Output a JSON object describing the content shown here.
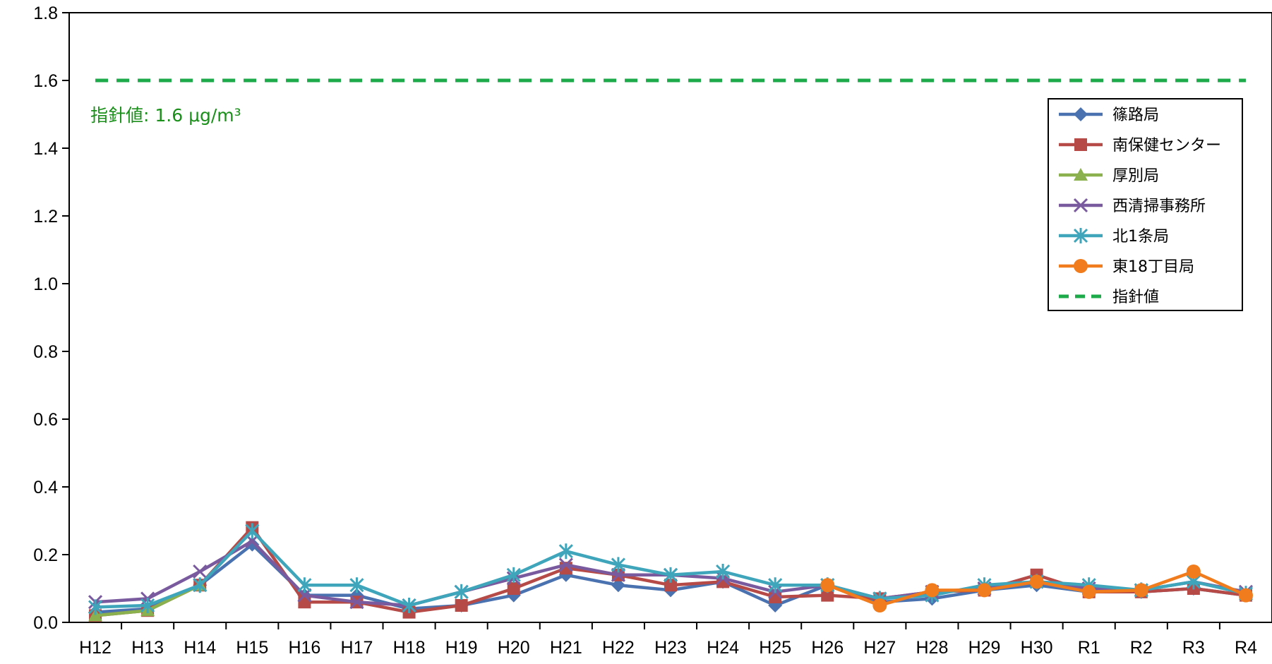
{
  "chart_data": {
    "type": "line",
    "categories": [
      "H12",
      "H13",
      "H14",
      "H15",
      "H16",
      "H17",
      "H18",
      "H19",
      "H20",
      "H21",
      "H22",
      "H23",
      "H24",
      "H25",
      "H26",
      "H27",
      "H28",
      "H29",
      "H30",
      "R1",
      "R2",
      "R3",
      "R4"
    ],
    "ylim": [
      0,
      1.8
    ],
    "yticks": [
      "0.0",
      "0.2",
      "0.4",
      "0.6",
      "0.8",
      "1.0",
      "1.2",
      "1.4",
      "1.6",
      "1.8"
    ],
    "grid": false,
    "legend_position": "top-right",
    "series": [
      {
        "name": "篠路局",
        "color": "#4a72b0",
        "marker": "diamond",
        "values": [
          0.03,
          0.04,
          0.11,
          0.23,
          0.08,
          0.08,
          0.04,
          0.05,
          0.08,
          0.14,
          0.11,
          0.095,
          0.12,
          0.05,
          0.11,
          0.06,
          0.07,
          0.095,
          0.11,
          0.09,
          0.09,
          0.1,
          0.08
        ]
      },
      {
        "name": "南保健センター",
        "color": "#b54a47",
        "marker": "square",
        "values": [
          0.02,
          0.035,
          0.11,
          0.28,
          0.06,
          0.06,
          0.03,
          0.05,
          0.1,
          0.16,
          0.14,
          0.11,
          0.12,
          0.075,
          0.08,
          0.07,
          0.09,
          0.095,
          0.14,
          0.09,
          0.09,
          0.1,
          0.08
        ]
      },
      {
        "name": "厚別局",
        "color": "#8bb14f",
        "marker": "triangle",
        "values": [
          0.02,
          0.035,
          0.11,
          null,
          null,
          null,
          null,
          null,
          null,
          null,
          null,
          null,
          null,
          null,
          null,
          null,
          null,
          null,
          null,
          null,
          null,
          null,
          null
        ]
      },
      {
        "name": "西清掃事務所",
        "color": "#7a5a9f",
        "marker": "x",
        "values": [
          0.06,
          0.07,
          0.15,
          0.24,
          0.08,
          0.06,
          0.05,
          0.09,
          0.13,
          0.17,
          0.14,
          0.14,
          0.13,
          0.09,
          0.11,
          0.07,
          0.09,
          0.1,
          0.12,
          0.1,
          0.095,
          0.12,
          0.09
        ]
      },
      {
        "name": "北1条局",
        "color": "#3ea5ba",
        "marker": "asterisk",
        "values": [
          0.045,
          0.05,
          0.11,
          0.27,
          0.11,
          0.11,
          0.05,
          0.09,
          0.14,
          0.21,
          0.17,
          0.14,
          0.15,
          0.11,
          0.11,
          0.07,
          0.08,
          0.11,
          0.12,
          0.11,
          0.095,
          0.12,
          0.085
        ]
      },
      {
        "name": "東18丁目局",
        "color": "#f07c1d",
        "marker": "circle",
        "values": [
          null,
          null,
          null,
          null,
          null,
          null,
          null,
          null,
          null,
          null,
          null,
          null,
          null,
          null,
          0.11,
          0.05,
          0.095,
          0.095,
          0.12,
          0.09,
          0.095,
          0.15,
          0.08
        ]
      }
    ],
    "guideline": {
      "name": "指針値",
      "value": 1.6,
      "color": "#1daa4a",
      "label_text": "指針値: 1.6 μg/m³"
    }
  }
}
